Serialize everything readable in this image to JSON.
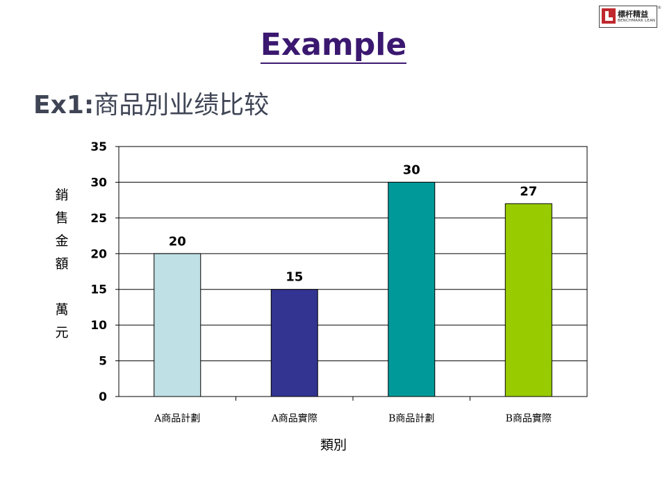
{
  "logo": {
    "cn": "標杆精益",
    "en": "BENCHMARK LEAN",
    "mark": "®"
  },
  "title": "Example",
  "subtitle": {
    "prefix": "Ex1:",
    "text": "商品別业绩比较"
  },
  "chart_data": {
    "type": "bar",
    "categories": [
      "A商品計劃",
      "A商品實際",
      "B商品計劃",
      "B商品實際"
    ],
    "values": [
      20,
      15,
      30,
      27
    ],
    "colors": [
      "#bfe0e4",
      "#333391",
      "#009999",
      "#99cc00"
    ],
    "ylabel": "銷售金額 萬元",
    "xlabel": "類別",
    "ylim": [
      0,
      35
    ],
    "yticks": [
      0,
      5,
      10,
      15,
      20,
      25,
      30,
      35
    ],
    "grid": true,
    "data_labels": true
  }
}
